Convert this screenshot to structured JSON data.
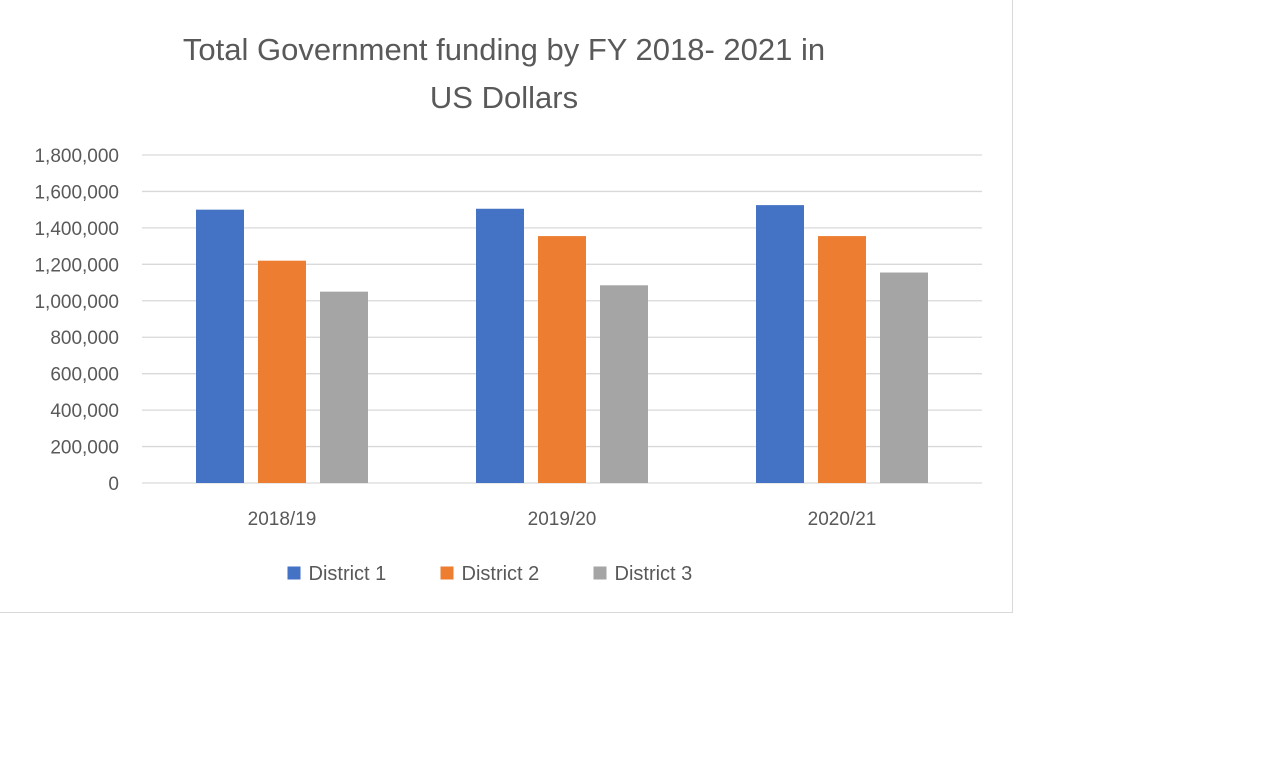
{
  "chart_data": {
    "type": "bar",
    "title_lines": [
      "Total Government funding by FY  2018- 2021 in",
      "US Dollars"
    ],
    "categories": [
      "2018/19",
      "2019/20",
      "2020/21"
    ],
    "series": [
      {
        "name": "District 1",
        "color": "#4472c4",
        "values": [
          1500000,
          1505000,
          1525000
        ]
      },
      {
        "name": "District 2",
        "color": "#ed7d31",
        "values": [
          1220000,
          1355000,
          1355000
        ]
      },
      {
        "name": "District 3",
        "color": "#a5a5a5",
        "values": [
          1050000,
          1085000,
          1155000
        ]
      }
    ],
    "ylim": [
      0,
      1800000
    ],
    "yticks": [
      0,
      200000,
      400000,
      600000,
      800000,
      1000000,
      1200000,
      1400000,
      1600000,
      1800000
    ],
    "ytick_labels": [
      "0",
      "200,000",
      "400,000",
      "600,000",
      "800,000",
      "1,000,000",
      "1,200,000",
      "1,400,000",
      "1,600,000",
      "1,800,000"
    ],
    "grid": true,
    "legend_position": "bottom",
    "xlabel": "",
    "ylabel": ""
  }
}
